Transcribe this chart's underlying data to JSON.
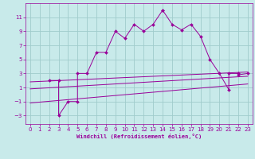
{
  "title": "",
  "xlabel": "Windchill (Refroidissement éolien,°C)",
  "bg_color": "#c8eaea",
  "grid_color": "#a0cccc",
  "line_color": "#990099",
  "xlim": [
    -0.5,
    23.5
  ],
  "ylim": [
    -4.2,
    13.0
  ],
  "xticks": [
    0,
    1,
    2,
    3,
    4,
    5,
    6,
    7,
    8,
    9,
    10,
    11,
    12,
    13,
    14,
    15,
    16,
    17,
    18,
    19,
    20,
    21,
    22,
    23
  ],
  "yticks": [
    -3,
    -1,
    1,
    3,
    5,
    7,
    9,
    11
  ],
  "scatter_x": [
    2,
    3,
    3,
    4,
    5,
    5,
    6,
    7,
    8,
    9,
    10,
    11,
    12,
    13,
    14,
    14,
    15,
    16,
    17,
    18,
    19,
    20,
    21,
    21,
    22,
    22,
    23
  ],
  "scatter_y": [
    2,
    2,
    -3,
    -1,
    -1,
    3,
    3,
    6,
    6,
    9,
    8,
    10,
    9,
    10,
    12,
    12,
    10,
    9.2,
    10,
    8.3,
    5,
    3,
    0.7,
    3,
    3,
    2.8,
    3
  ],
  "line1_x": [
    0,
    23
  ],
  "line1_y": [
    1.8,
    3.2
  ],
  "line2_x": [
    0,
    23
  ],
  "line2_y": [
    0.8,
    2.6
  ],
  "line3_x": [
    0,
    23
  ],
  "line3_y": [
    -1.2,
    1.5
  ],
  "tick_fontsize": 5,
  "xlabel_fontsize": 5,
  "marker_size": 2.0,
  "line_width": 0.7
}
